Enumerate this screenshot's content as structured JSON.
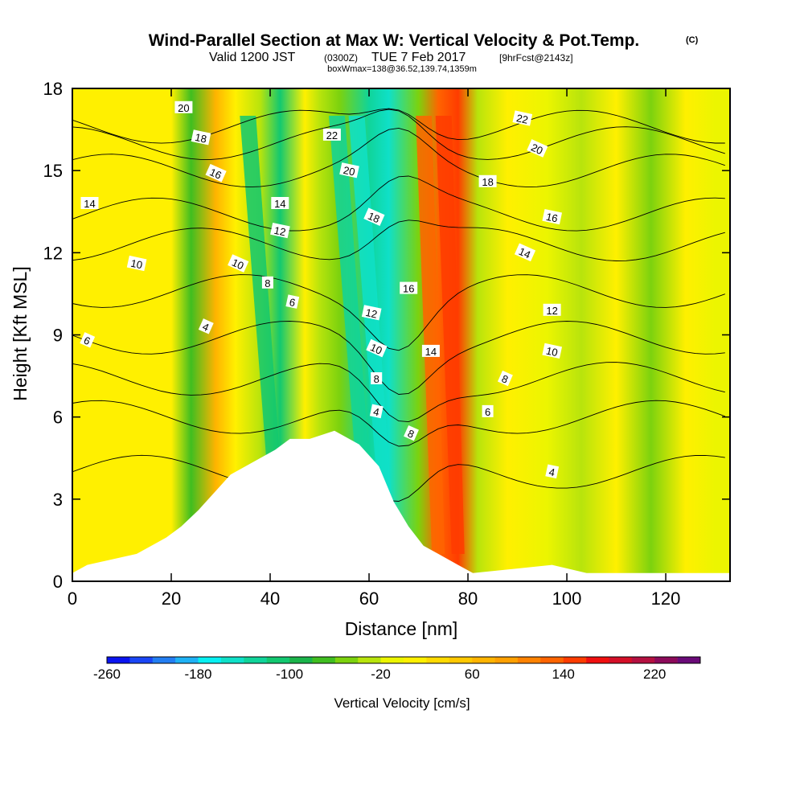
{
  "title": {
    "main": "Wind-Parallel Section at Max W: Vertical Velocity & Pot.Temp.",
    "main_suffix": "(C)",
    "valid_prefix": "Valid 1200 JST",
    "valid_utc": "(0300Z)",
    "valid_date": "TUE 7 Feb 2017",
    "forecast": "[9hrFcst@2143z]",
    "box_info": "boxWmax=138@36.52,139.74,1359m"
  },
  "chart_data": {
    "type": "heatmap",
    "xlabel": "Distance [nm]",
    "ylabel": "Height [Kft MSL]",
    "xlim": [
      0,
      133
    ],
    "ylim": [
      0,
      18
    ],
    "xticks": [
      "0",
      "20",
      "40",
      "60",
      "80",
      "100",
      "120"
    ],
    "yticks": [
      "0",
      "3",
      "6",
      "9",
      "12",
      "15",
      "18"
    ],
    "colorbar": {
      "title": "Vertical Velocity [cm/s]",
      "min": -260,
      "max": 260,
      "step": 20,
      "tick_values": [
        "-260",
        "-180",
        "-100",
        "-20",
        "60",
        "140",
        "220"
      ],
      "colors": [
        "#0a14f0",
        "#1a46f6",
        "#237ef2",
        "#1fb2f5",
        "#07f0f2",
        "#0fe0c8",
        "#10d49a",
        "#12c870",
        "#1ab44a",
        "#40be20",
        "#7cd20e",
        "#b8e40c",
        "#ecf500",
        "#fff000",
        "#ffda00",
        "#ffc800",
        "#ffb400",
        "#ffa000",
        "#ff8200",
        "#ff6400",
        "#ff3c00",
        "#f00f0f",
        "#d40f28",
        "#b41040",
        "#8c0a5a",
        "#6a0a78"
      ]
    },
    "velocity_bands": [
      {
        "x": 1,
        "w": 5
      },
      {
        "x": 4,
        "w": 12
      },
      {
        "x": 12,
        "w": 10
      },
      {
        "x": 20,
        "w": 5
      },
      {
        "x": 24,
        "w": -75
      },
      {
        "x": 29,
        "w": 60
      },
      {
        "x": 33,
        "w": 5
      },
      {
        "x": 38,
        "w": -40
      },
      {
        "x": 42,
        "w": -110
      },
      {
        "x": 47,
        "w": 10
      },
      {
        "x": 50,
        "w": -35
      },
      {
        "x": 54,
        "w": -45
      },
      {
        "x": 60,
        "w": -130
      },
      {
        "x": 64,
        "w": -150
      },
      {
        "x": 70,
        "w": -60
      },
      {
        "x": 74,
        "w": 120
      },
      {
        "x": 78,
        "w": 150
      },
      {
        "x": 82,
        "w": -25
      },
      {
        "x": 88,
        "w": 10
      },
      {
        "x": 96,
        "w": -15
      },
      {
        "x": 103,
        "w": -30
      },
      {
        "x": 110,
        "w": 5
      },
      {
        "x": 117,
        "w": -45
      },
      {
        "x": 124,
        "w": 0
      },
      {
        "x": 130,
        "w": -10
      }
    ],
    "terrain": [
      {
        "x": 0,
        "h": 0.3
      },
      {
        "x": 3,
        "h": 0.6
      },
      {
        "x": 13,
        "h": 1.0
      },
      {
        "x": 16,
        "h": 1.3
      },
      {
        "x": 19,
        "h": 1.6
      },
      {
        "x": 22,
        "h": 2.0
      },
      {
        "x": 25.5,
        "h": 2.6
      },
      {
        "x": 29,
        "h": 3.3
      },
      {
        "x": 32,
        "h": 3.9
      },
      {
        "x": 35,
        "h": 4.2
      },
      {
        "x": 38,
        "h": 4.5
      },
      {
        "x": 41,
        "h": 4.8
      },
      {
        "x": 44,
        "h": 5.2
      },
      {
        "x": 48,
        "h": 5.2
      },
      {
        "x": 53,
        "h": 5.5
      },
      {
        "x": 58,
        "h": 5.0
      },
      {
        "x": 62,
        "h": 4.2
      },
      {
        "x": 65,
        "h": 2.9
      },
      {
        "x": 68,
        "h": 2.0
      },
      {
        "x": 71,
        "h": 1.3
      },
      {
        "x": 74,
        "h": 1.0
      },
      {
        "x": 78,
        "h": 0.6
      },
      {
        "x": 81,
        "h": 0.3
      },
      {
        "x": 97,
        "h": 0.6
      },
      {
        "x": 104,
        "h": 0.3
      },
      {
        "x": 120,
        "h": 0.3
      },
      {
        "x": 133,
        "h": 0.3
      }
    ],
    "isentropes": [
      {
        "label": "4",
        "y": 4.0
      },
      {
        "label": "6",
        "y": 6.0
      },
      {
        "label": "8",
        "y": 7.4
      },
      {
        "label": "10",
        "y": 8.9
      },
      {
        "label": "12",
        "y": 10.6
      },
      {
        "label": "14",
        "y": 12.3
      },
      {
        "label": "16",
        "y": 13.4
      },
      {
        "label": "18",
        "y": 15.0
      },
      {
        "label": "20",
        "y": 16.0
      },
      {
        "label": "22",
        "y": 16.6
      }
    ],
    "contour_labels": [
      {
        "text": "20",
        "x": 22.5,
        "y": 17.3
      },
      {
        "text": "18",
        "x": 26,
        "y": 16.2
      },
      {
        "text": "16",
        "x": 29,
        "y": 14.9
      },
      {
        "text": "14",
        "x": 3.5,
        "y": 13.8
      },
      {
        "text": "10",
        "x": 13,
        "y": 11.6
      },
      {
        "text": "6",
        "x": 3,
        "y": 8.8
      },
      {
        "text": "14",
        "x": 42,
        "y": 13.8
      },
      {
        "text": "12",
        "x": 42,
        "y": 12.8
      },
      {
        "text": "10",
        "x": 33.5,
        "y": 11.6
      },
      {
        "text": "8",
        "x": 39.5,
        "y": 10.9
      },
      {
        "text": "6",
        "x": 44.5,
        "y": 10.2
      },
      {
        "text": "4",
        "x": 27,
        "y": 9.3
      },
      {
        "text": "22",
        "x": 52.5,
        "y": 16.3
      },
      {
        "text": "20",
        "x": 56,
        "y": 15.0
      },
      {
        "text": "18",
        "x": 61,
        "y": 13.3
      },
      {
        "text": "16",
        "x": 68,
        "y": 10.7
      },
      {
        "text": "12",
        "x": 60.5,
        "y": 9.8
      },
      {
        "text": "10",
        "x": 61.5,
        "y": 8.5
      },
      {
        "text": "8",
        "x": 61.5,
        "y": 7.4
      },
      {
        "text": "4",
        "x": 61.5,
        "y": 6.2
      },
      {
        "text": "8",
        "x": 68.5,
        "y": 5.4
      },
      {
        "text": "14",
        "x": 72.5,
        "y": 8.4
      },
      {
        "text": "22",
        "x": 91,
        "y": 16.9
      },
      {
        "text": "20",
        "x": 94,
        "y": 15.8
      },
      {
        "text": "18",
        "x": 84,
        "y": 14.6
      },
      {
        "text": "16",
        "x": 97,
        "y": 13.3
      },
      {
        "text": "14",
        "x": 91.5,
        "y": 12.0
      },
      {
        "text": "12",
        "x": 97,
        "y": 9.9
      },
      {
        "text": "10",
        "x": 97,
        "y": 8.4
      },
      {
        "text": "8",
        "x": 87.5,
        "y": 7.4
      },
      {
        "text": "6",
        "x": 84,
        "y": 6.2
      },
      {
        "text": "4",
        "x": 97,
        "y": 4.0
      }
    ]
  }
}
